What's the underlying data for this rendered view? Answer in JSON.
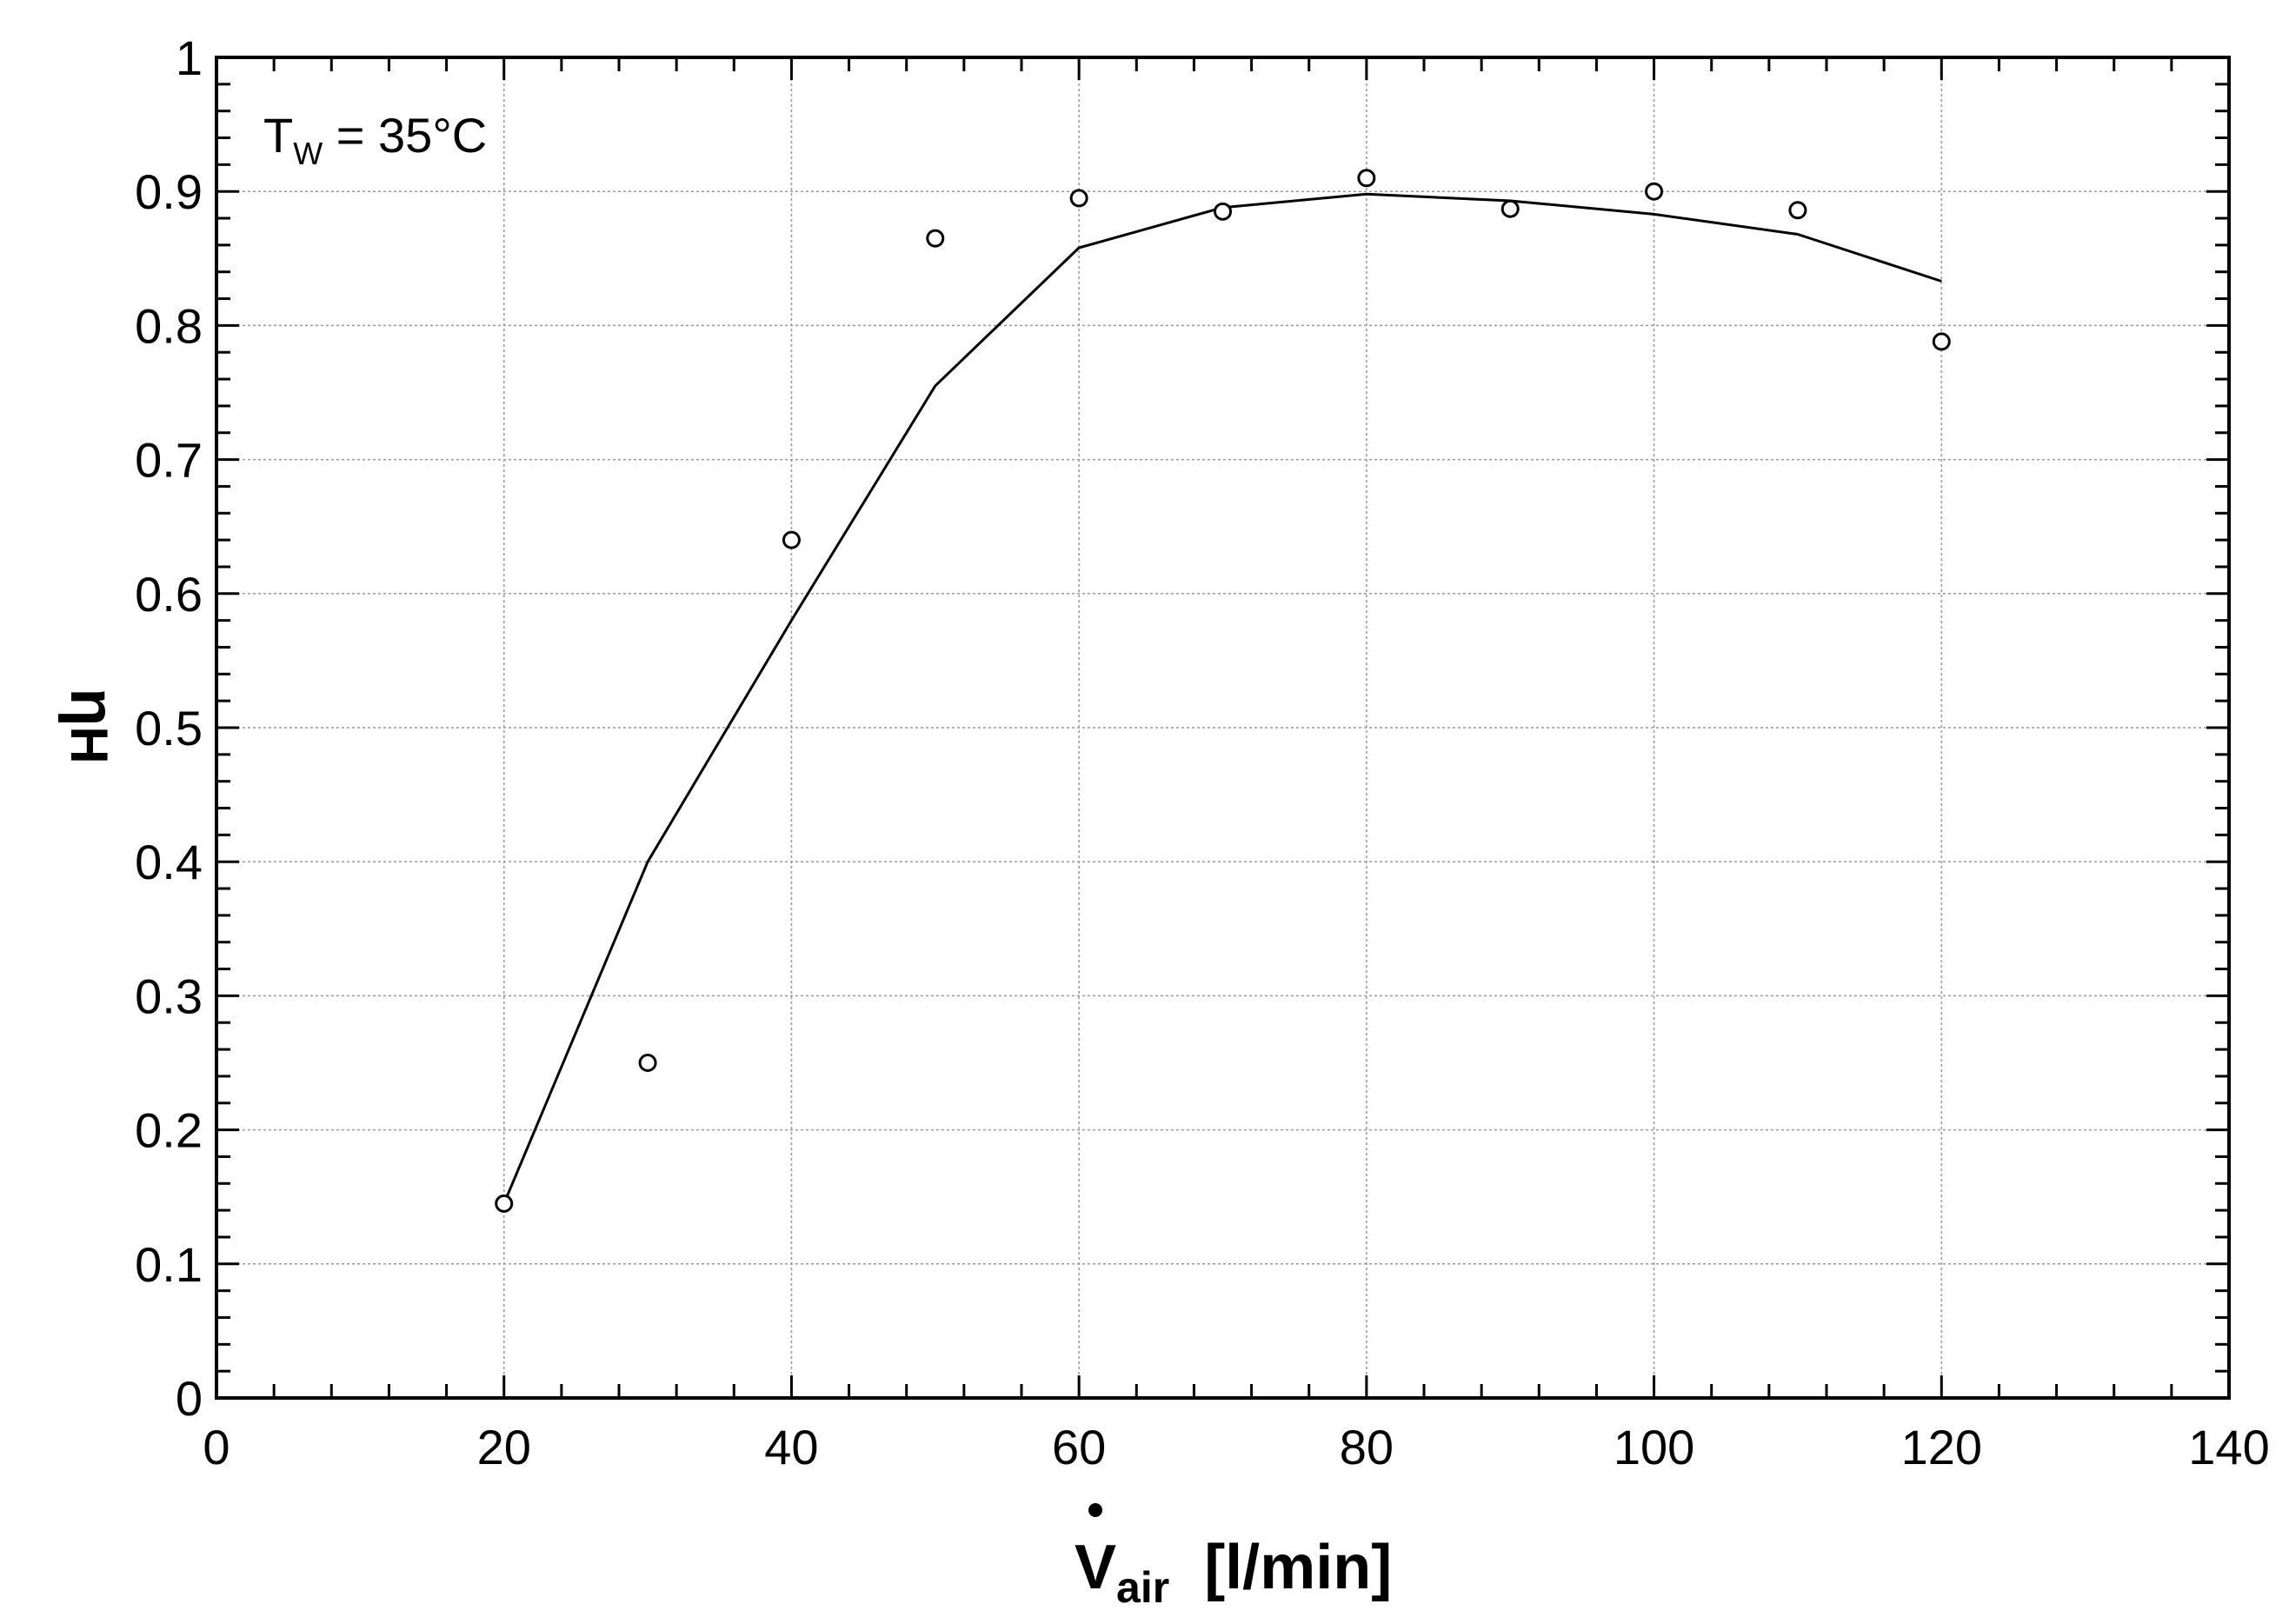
{
  "chart_data": {
    "type": "scatter",
    "title": "",
    "xlabel": {
      "main": "V",
      "sub": "air",
      "unit": "[l/min]"
    },
    "ylabel": {
      "main": "η",
      "sub": "H"
    },
    "xlim": [
      0,
      140
    ],
    "ylim": [
      0,
      1
    ],
    "x_ticks": [
      0,
      20,
      40,
      60,
      80,
      100,
      120,
      140
    ],
    "y_ticks": [
      0,
      0.1,
      0.2,
      0.3,
      0.4,
      0.5,
      0.6,
      0.7,
      0.8,
      0.9,
      1
    ],
    "x_tick_labels": [
      "0",
      "20",
      "40",
      "60",
      "80",
      "100",
      "120",
      "140"
    ],
    "y_tick_labels": [
      "0",
      "0.1",
      "0.2",
      "0.3",
      "0.4",
      "0.5",
      "0.6",
      "0.7",
      "0.8",
      "0.9",
      "1"
    ],
    "grid": true,
    "annotation": {
      "main": "T",
      "sub": "W",
      "rest": " = 35°C"
    },
    "series": [
      {
        "style": "markers",
        "marker": "open-circle",
        "x": [
          20,
          30,
          40,
          50,
          60,
          70,
          80,
          90,
          100,
          110,
          120
        ],
        "y": [
          0.145,
          0.25,
          0.64,
          0.865,
          0.895,
          0.885,
          0.91,
          0.887,
          0.9,
          0.886,
          0.788
        ]
      },
      {
        "style": "line",
        "x": [
          20,
          30,
          40,
          50,
          60,
          70,
          80,
          90,
          100,
          110,
          120
        ],
        "y": [
          0.145,
          0.4,
          0.58,
          0.755,
          0.858,
          0.888,
          0.898,
          0.893,
          0.883,
          0.868,
          0.833
        ]
      }
    ]
  }
}
